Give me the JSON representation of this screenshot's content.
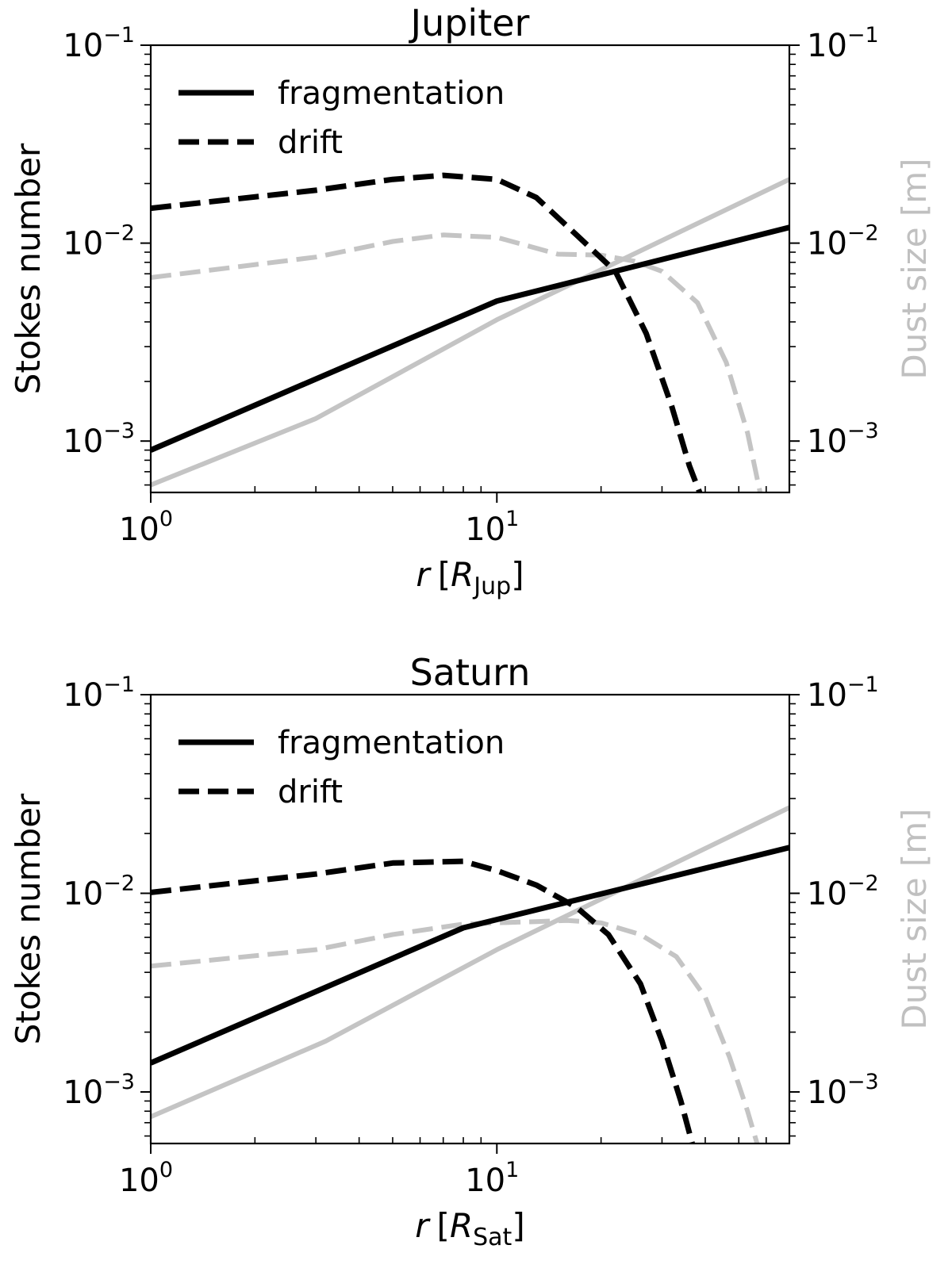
{
  "chart_data": [
    {
      "type": "line",
      "title": "Jupiter",
      "xlabel": {
        "var": "r",
        "unit_base": "R",
        "unit_sub": "Jup"
      },
      "ylabel": "Stokes number",
      "ylabel_right": "Dust size [m]",
      "xscale": "log",
      "yscale": "log",
      "xlim": [
        1,
        70
      ],
      "ylim": [
        0.00055,
        0.1
      ],
      "ylim_right": [
        0.00055,
        0.1
      ],
      "xticks": [
        {
          "base": "10",
          "exp": "0",
          "value": 1
        },
        {
          "base": "10",
          "exp": "1",
          "value": 10
        }
      ],
      "yticks": [
        {
          "base": "10",
          "exp": "−3",
          "value": 0.001
        },
        {
          "base": "10",
          "exp": "−2",
          "value": 0.01
        },
        {
          "base": "10",
          "exp": "−1",
          "value": 0.1
        }
      ],
      "yticks_right": [
        {
          "base": "10",
          "exp": "−3",
          "value": 0.001
        },
        {
          "base": "10",
          "exp": "−2",
          "value": 0.01
        },
        {
          "base": "10",
          "exp": "−1",
          "value": 0.1
        }
      ],
      "legend": {
        "position": "upper-left",
        "entries": [
          {
            "label": "fragmentation",
            "style": "solid"
          },
          {
            "label": "drift",
            "style": "dashed"
          }
        ]
      },
      "colors": {
        "stokes": "#000000",
        "dust": "#c4c4c4"
      },
      "series": [
        {
          "name": "fragmentation",
          "axis": "left",
          "style": "solid",
          "color": "#000000",
          "x": [
            1,
            10,
            70
          ],
          "y": [
            0.0009,
            0.0051,
            0.012
          ]
        },
        {
          "name": "drift",
          "axis": "left",
          "style": "dashed",
          "color": "#000000",
          "x": [
            1,
            3,
            5,
            7,
            10,
            13,
            17,
            22,
            27,
            32,
            36,
            39
          ],
          "y": [
            0.015,
            0.0185,
            0.021,
            0.022,
            0.021,
            0.017,
            0.011,
            0.0072,
            0.0035,
            0.0015,
            0.00075,
            0.00052
          ]
        },
        {
          "axis": "right",
          "style": "solid",
          "color": "#c4c4c4",
          "x": [
            1,
            3,
            10,
            70
          ],
          "y": [
            0.0006,
            0.0013,
            0.0041,
            0.021
          ]
        },
        {
          "axis": "right",
          "style": "dashed",
          "color": "#c4c4c4",
          "x": [
            1,
            3,
            5,
            7,
            10,
            12,
            15,
            20,
            25,
            30,
            38,
            46,
            53,
            58
          ],
          "y": [
            0.0067,
            0.0085,
            0.0102,
            0.011,
            0.0107,
            0.0098,
            0.0088,
            0.0087,
            0.0081,
            0.0072,
            0.005,
            0.0025,
            0.0011,
            0.00052
          ]
        }
      ]
    },
    {
      "type": "line",
      "title": "Saturn",
      "xlabel": {
        "var": "r",
        "unit_base": "R",
        "unit_sub": "Sat"
      },
      "ylabel": "Stokes number",
      "ylabel_right": "Dust size [m]",
      "xscale": "log",
      "yscale": "log",
      "xlim": [
        1,
        70
      ],
      "ylim": [
        0.00055,
        0.1
      ],
      "ylim_right": [
        0.00055,
        0.1
      ],
      "xticks": [
        {
          "base": "10",
          "exp": "0",
          "value": 1
        },
        {
          "base": "10",
          "exp": "1",
          "value": 10
        }
      ],
      "yticks": [
        {
          "base": "10",
          "exp": "−3",
          "value": 0.001
        },
        {
          "base": "10",
          "exp": "−2",
          "value": 0.01
        },
        {
          "base": "10",
          "exp": "−1",
          "value": 0.1
        }
      ],
      "yticks_right": [
        {
          "base": "10",
          "exp": "−3",
          "value": 0.001
        },
        {
          "base": "10",
          "exp": "−2",
          "value": 0.01
        },
        {
          "base": "10",
          "exp": "−1",
          "value": 0.1
        }
      ],
      "legend": {
        "position": "upper-left",
        "entries": [
          {
            "label": "fragmentation",
            "style": "solid"
          },
          {
            "label": "drift",
            "style": "dashed"
          }
        ]
      },
      "colors": {
        "stokes": "#000000",
        "dust": "#c4c4c4"
      },
      "series": [
        {
          "name": "fragmentation",
          "axis": "left",
          "style": "solid",
          "color": "#000000",
          "x": [
            1,
            8,
            70
          ],
          "y": [
            0.0014,
            0.0067,
            0.017
          ]
        },
        {
          "name": "drift",
          "axis": "left",
          "style": "dashed",
          "color": "#000000",
          "x": [
            1,
            3,
            5,
            8,
            10,
            13,
            17,
            21,
            26,
            30,
            34,
            37
          ],
          "y": [
            0.0101,
            0.0125,
            0.0142,
            0.0145,
            0.013,
            0.011,
            0.0085,
            0.0062,
            0.0035,
            0.0018,
            0.0009,
            0.00052
          ]
        },
        {
          "axis": "right",
          "style": "solid",
          "color": "#c4c4c4",
          "x": [
            1,
            3.2,
            10,
            70
          ],
          "y": [
            0.00075,
            0.0018,
            0.0052,
            0.027
          ]
        },
        {
          "axis": "right",
          "style": "dashed",
          "color": "#c4c4c4",
          "x": [
            1,
            3,
            5,
            8,
            10,
            13,
            16,
            20,
            26,
            33,
            40,
            47,
            53,
            57
          ],
          "y": [
            0.0043,
            0.0052,
            0.0062,
            0.007,
            0.0071,
            0.0072,
            0.0073,
            0.0071,
            0.0062,
            0.0048,
            0.003,
            0.0015,
            0.0008,
            0.00052
          ]
        }
      ]
    }
  ]
}
